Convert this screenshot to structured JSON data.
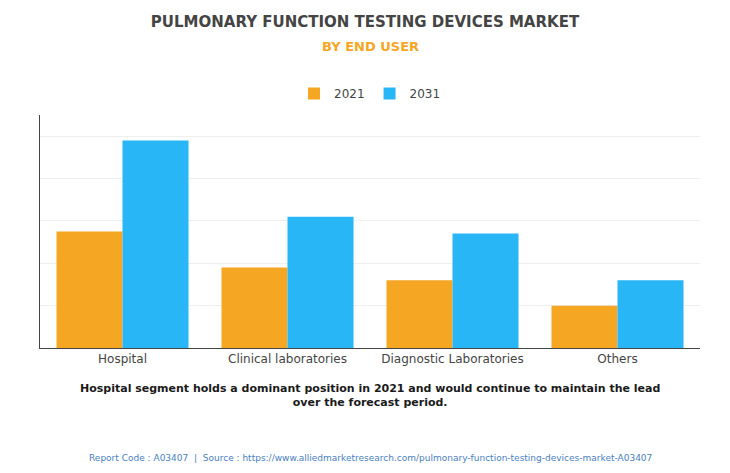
{
  "chart_data": {
    "type": "bar",
    "title": "PULMONARY FUNCTION TESTING DEVICES MARKET",
    "subtitle": "BY END USER",
    "categories": [
      "Hospital",
      "Clinical laboratories",
      "Diagnostic Laboratories",
      "Others"
    ],
    "series": [
      {
        "name": "2021",
        "color": "#F5A623",
        "values": [
          5.5,
          3.8,
          3.2,
          2.0
        ]
      },
      {
        "name": "2031",
        "color": "#29B6F6",
        "values": [
          9.8,
          6.2,
          5.4,
          3.2
        ]
      }
    ],
    "ylim": [
      0,
      11
    ],
    "yticks": [
      0,
      2,
      4,
      6,
      8,
      10
    ],
    "grid": true,
    "tick_labels": "x",
    "legend": "top",
    "annotation": "Hospital segment holds a dominant position in 2021 and would continue to maintain the lead\nover the forecast period.",
    "footer": "Report Code : A03407  |  Source : https://www.alliedmarketresearch.com/pulmonary-function-testing-devices-market-A03407"
  }
}
